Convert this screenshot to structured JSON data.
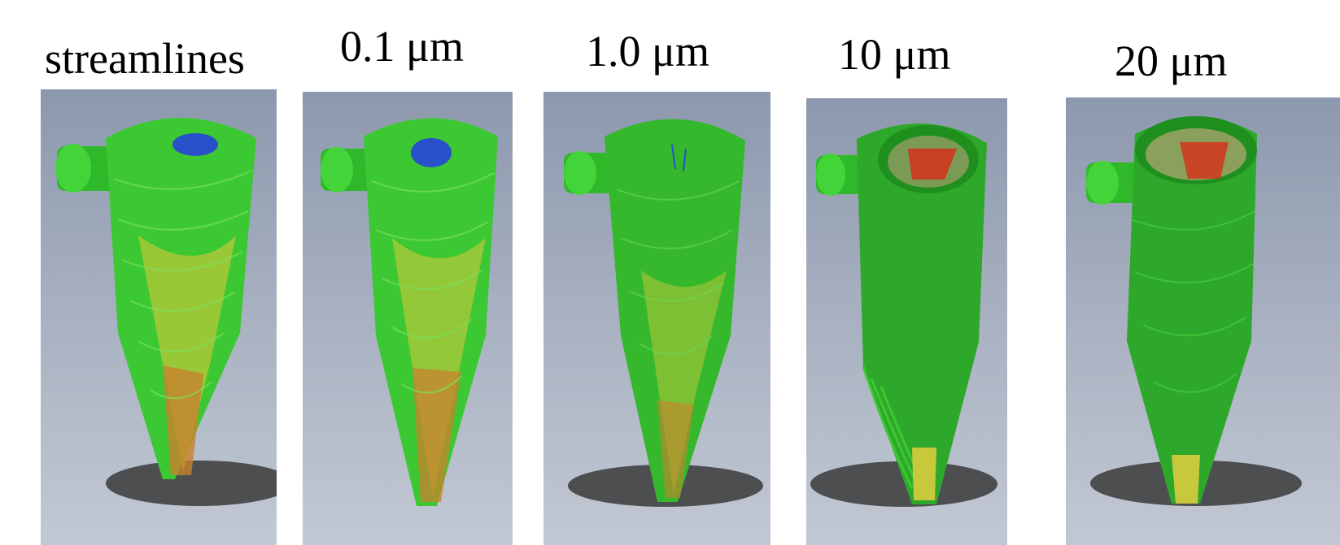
{
  "labels": [
    "streamlines",
    "0.1 μm",
    "1.0 μm",
    "10 μm",
    "20 μm"
  ],
  "colors": {
    "background": "#ffffff",
    "panel_top": "#8c98ad",
    "panel_bottom": "#c2c8d3",
    "stream_green": "#3cc832",
    "stream_yellow": "#c8c83c",
    "stream_orange": "#c8822d",
    "stream_blue": "#2850c8",
    "stream_red": "#dc2814",
    "shadow": "#3a3a3a"
  }
}
